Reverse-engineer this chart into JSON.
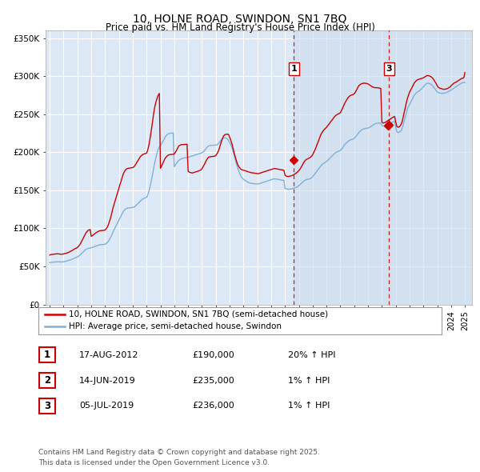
{
  "title": "10, HOLNE ROAD, SWINDON, SN1 7BQ",
  "subtitle": "Price paid vs. HM Land Registry's House Price Index (HPI)",
  "title_fontsize": 10,
  "subtitle_fontsize": 8.5,
  "background_color": "#ffffff",
  "plot_bg_color": "#dce8f5",
  "plot_bg_shade": "#ccdcee",
  "grid_color": "#ffffff",
  "red_line_color": "#cc0000",
  "blue_line_color": "#7fb0d8",
  "ylim": [
    0,
    360000
  ],
  "yticks": [
    0,
    50000,
    100000,
    150000,
    200000,
    250000,
    300000,
    350000
  ],
  "ytick_labels": [
    "£0",
    "£50K",
    "£100K",
    "£150K",
    "£200K",
    "£250K",
    "£300K",
    "£350K"
  ],
  "xlim_start": 1994.7,
  "xlim_end": 2025.5,
  "xtick_years": [
    1995,
    1996,
    1997,
    1998,
    1999,
    2000,
    2001,
    2002,
    2003,
    2004,
    2005,
    2006,
    2007,
    2008,
    2009,
    2010,
    2011,
    2012,
    2013,
    2014,
    2015,
    2016,
    2017,
    2018,
    2019,
    2020,
    2021,
    2022,
    2023,
    2024,
    2025
  ],
  "sale_dates": [
    2012.63,
    2019.45,
    2019.51
  ],
  "sale_prices": [
    190000,
    235000,
    236000
  ],
  "sale_labels": [
    "1",
    "2",
    "3"
  ],
  "vline_sale1": 2012.63,
  "vline_sale3": 2019.51,
  "legend_entries": [
    "10, HOLNE ROAD, SWINDON, SN1 7BQ (semi-detached house)",
    "HPI: Average price, semi-detached house, Swindon"
  ],
  "table_rows": [
    [
      "1",
      "17-AUG-2012",
      "£190,000",
      "20% ↑ HPI"
    ],
    [
      "2",
      "14-JUN-2019",
      "£235,000",
      "1% ↑ HPI"
    ],
    [
      "3",
      "05-JUL-2019",
      "£236,000",
      "1% ↑ HPI"
    ]
  ],
  "footer": "Contains HM Land Registry data © Crown copyright and database right 2025.\nThis data is licensed under the Open Government Licence v3.0.",
  "hpi_years": [
    1995.0,
    1995.08,
    1995.17,
    1995.25,
    1995.33,
    1995.42,
    1995.5,
    1995.58,
    1995.67,
    1995.75,
    1995.83,
    1995.92,
    1996.0,
    1996.08,
    1996.17,
    1996.25,
    1996.33,
    1996.42,
    1996.5,
    1996.58,
    1996.67,
    1996.75,
    1996.83,
    1996.92,
    1997.0,
    1997.08,
    1997.17,
    1997.25,
    1997.33,
    1997.42,
    1997.5,
    1997.58,
    1997.67,
    1997.75,
    1997.83,
    1997.92,
    1998.0,
    1998.08,
    1998.17,
    1998.25,
    1998.33,
    1998.42,
    1998.5,
    1998.58,
    1998.67,
    1998.75,
    1998.83,
    1998.92,
    1999.0,
    1999.08,
    1999.17,
    1999.25,
    1999.33,
    1999.42,
    1999.5,
    1999.58,
    1999.67,
    1999.75,
    1999.83,
    1999.92,
    2000.0,
    2000.08,
    2000.17,
    2000.25,
    2000.33,
    2000.42,
    2000.5,
    2000.58,
    2000.67,
    2000.75,
    2000.83,
    2000.92,
    2001.0,
    2001.08,
    2001.17,
    2001.25,
    2001.33,
    2001.42,
    2001.5,
    2001.58,
    2001.67,
    2001.75,
    2001.83,
    2001.92,
    2002.0,
    2002.08,
    2002.17,
    2002.25,
    2002.33,
    2002.42,
    2002.5,
    2002.58,
    2002.67,
    2002.75,
    2002.83,
    2002.92,
    2003.0,
    2003.08,
    2003.17,
    2003.25,
    2003.33,
    2003.42,
    2003.5,
    2003.58,
    2003.67,
    2003.75,
    2003.83,
    2003.92,
    2004.0,
    2004.08,
    2004.17,
    2004.25,
    2004.33,
    2004.42,
    2004.5,
    2004.58,
    2004.67,
    2004.75,
    2004.83,
    2004.92,
    2005.0,
    2005.08,
    2005.17,
    2005.25,
    2005.33,
    2005.42,
    2005.5,
    2005.58,
    2005.67,
    2005.75,
    2005.83,
    2005.92,
    2006.0,
    2006.08,
    2006.17,
    2006.25,
    2006.33,
    2006.42,
    2006.5,
    2006.58,
    2006.67,
    2006.75,
    2006.83,
    2006.92,
    2007.0,
    2007.08,
    2007.17,
    2007.25,
    2007.33,
    2007.42,
    2007.5,
    2007.58,
    2007.67,
    2007.75,
    2007.83,
    2007.92,
    2008.0,
    2008.08,
    2008.17,
    2008.25,
    2008.33,
    2008.42,
    2008.5,
    2008.58,
    2008.67,
    2008.75,
    2008.83,
    2008.92,
    2009.0,
    2009.08,
    2009.17,
    2009.25,
    2009.33,
    2009.42,
    2009.5,
    2009.58,
    2009.67,
    2009.75,
    2009.83,
    2009.92,
    2010.0,
    2010.08,
    2010.17,
    2010.25,
    2010.33,
    2010.42,
    2010.5,
    2010.58,
    2010.67,
    2010.75,
    2010.83,
    2010.92,
    2011.0,
    2011.08,
    2011.17,
    2011.25,
    2011.33,
    2011.42,
    2011.5,
    2011.58,
    2011.67,
    2011.75,
    2011.83,
    2011.92,
    2012.0,
    2012.08,
    2012.17,
    2012.25,
    2012.33,
    2012.42,
    2012.5,
    2012.58,
    2012.67,
    2012.75,
    2012.83,
    2012.92,
    2013.0,
    2013.08,
    2013.17,
    2013.25,
    2013.33,
    2013.42,
    2013.5,
    2013.58,
    2013.67,
    2013.75,
    2013.83,
    2013.92,
    2014.0,
    2014.08,
    2014.17,
    2014.25,
    2014.33,
    2014.42,
    2014.5,
    2014.58,
    2014.67,
    2014.75,
    2014.83,
    2014.92,
    2015.0,
    2015.08,
    2015.17,
    2015.25,
    2015.33,
    2015.42,
    2015.5,
    2015.58,
    2015.67,
    2015.75,
    2015.83,
    2015.92,
    2016.0,
    2016.08,
    2016.17,
    2016.25,
    2016.33,
    2016.42,
    2016.5,
    2016.58,
    2016.67,
    2016.75,
    2016.83,
    2016.92,
    2017.0,
    2017.08,
    2017.17,
    2017.25,
    2017.33,
    2017.42,
    2017.5,
    2017.58,
    2017.67,
    2017.75,
    2017.83,
    2017.92,
    2018.0,
    2018.08,
    2018.17,
    2018.25,
    2018.33,
    2018.42,
    2018.5,
    2018.58,
    2018.67,
    2018.75,
    2018.83,
    2018.92,
    2019.0,
    2019.08,
    2019.17,
    2019.25,
    2019.33,
    2019.42,
    2019.5,
    2019.58,
    2019.67,
    2019.75,
    2019.83,
    2019.92,
    2020.0,
    2020.08,
    2020.17,
    2020.25,
    2020.33,
    2020.42,
    2020.5,
    2020.58,
    2020.67,
    2020.75,
    2020.83,
    2020.92,
    2021.0,
    2021.08,
    2021.17,
    2021.25,
    2021.33,
    2021.42,
    2021.5,
    2021.58,
    2021.67,
    2021.75,
    2021.83,
    2021.92,
    2022.0,
    2022.08,
    2022.17,
    2022.25,
    2022.33,
    2022.42,
    2022.5,
    2022.58,
    2022.67,
    2022.75,
    2022.83,
    2022.92,
    2023.0,
    2023.08,
    2023.17,
    2023.25,
    2023.33,
    2023.42,
    2023.5,
    2023.58,
    2023.67,
    2023.75,
    2023.83,
    2023.92,
    2024.0,
    2024.08,
    2024.17,
    2024.25,
    2024.33,
    2024.42,
    2024.5,
    2024.58,
    2024.67,
    2024.75,
    2024.83,
    2024.92,
    2025.0
  ],
  "hpi_values": [
    55000,
    55300,
    55500,
    55600,
    55700,
    55800,
    56000,
    56100,
    56000,
    55900,
    55800,
    55900,
    56100,
    56400,
    56800,
    57200,
    57700,
    58200,
    58700,
    59300,
    59900,
    60500,
    61200,
    61800,
    62500,
    63500,
    64700,
    66000,
    67500,
    69000,
    70500,
    72000,
    73000,
    73500,
    74000,
    74200,
    74500,
    75000,
    75600,
    76200,
    76800,
    77300,
    77800,
    78200,
    78500,
    78700,
    78800,
    78900,
    79200,
    80000,
    81500,
    83500,
    86000,
    89000,
    92000,
    95500,
    99000,
    102000,
    105000,
    108000,
    111000,
    114000,
    117000,
    120000,
    122500,
    124500,
    125800,
    126500,
    126800,
    127000,
    127200,
    127400,
    127600,
    128000,
    129000,
    130500,
    132000,
    133500,
    135000,
    136500,
    138000,
    139000,
    139800,
    140200,
    141000,
    144000,
    149000,
    155000,
    162000,
    170000,
    178000,
    186000,
    193000,
    199000,
    204000,
    207000,
    209000,
    211500,
    214000,
    217000,
    220000,
    222000,
    223500,
    224500,
    225000,
    225200,
    225300,
    225400,
    181000,
    183500,
    186000,
    188000,
    189500,
    190500,
    191500,
    192000,
    192500,
    192800,
    193000,
    193200,
    193500,
    194000,
    194500,
    195000,
    195500,
    196000,
    196500,
    197000,
    197500,
    198000,
    198500,
    199000,
    199500,
    200500,
    202000,
    204000,
    206000,
    207500,
    208500,
    209000,
    209200,
    209300,
    209400,
    209500,
    209600,
    210000,
    211000,
    213000,
    215000,
    217000,
    218500,
    219000,
    219200,
    218800,
    217500,
    215500,
    213000,
    210000,
    206000,
    201000,
    195500,
    190000,
    184500,
    179500,
    175000,
    171000,
    168000,
    166000,
    164500,
    163500,
    162500,
    161500,
    160500,
    160000,
    159500,
    159200,
    159000,
    158800,
    158600,
    158500,
    158500,
    158500,
    159000,
    159500,
    160000,
    160500,
    161000,
    161500,
    162000,
    162500,
    163000,
    163500,
    164000,
    164500,
    165000,
    165200,
    165000,
    164800,
    164500,
    164200,
    163800,
    163500,
    163200,
    163000,
    152500,
    152000,
    151800,
    151500,
    151500,
    151800,
    152000,
    152500,
    153000,
    153500,
    154200,
    155000,
    156000,
    157500,
    159000,
    160500,
    162000,
    163000,
    163800,
    164300,
    164700,
    165000,
    165500,
    166500,
    168000,
    170000,
    172000,
    174000,
    176000,
    178000,
    180000,
    182000,
    183800,
    185000,
    186000,
    187000,
    188000,
    189500,
    191000,
    192500,
    194000,
    195500,
    197000,
    198500,
    199800,
    200500,
    201200,
    201800,
    202500,
    204000,
    206000,
    208500,
    210500,
    212000,
    213500,
    214800,
    215800,
    216500,
    217000,
    217500,
    218500,
    220000,
    222000,
    224000,
    226000,
    227500,
    229000,
    230000,
    230800,
    231200,
    231500,
    231800,
    232000,
    232500,
    233500,
    234500,
    235500,
    236500,
    237500,
    238000,
    238300,
    238500,
    238600,
    238500,
    235500,
    234500,
    234800,
    235200,
    235800,
    236500,
    237200,
    238000,
    238800,
    239500,
    240200,
    240800,
    233000,
    227000,
    226000,
    226500,
    227500,
    229500,
    233500,
    239000,
    245000,
    251000,
    256000,
    260000,
    263000,
    266000,
    269000,
    272000,
    275000,
    277000,
    278500,
    279500,
    280500,
    281500,
    283000,
    284500,
    286000,
    288000,
    289500,
    290500,
    291000,
    290500,
    290000,
    289000,
    287500,
    285500,
    283500,
    281500,
    279500,
    278500,
    278000,
    277800,
    277500,
    277500,
    277800,
    278200,
    278800,
    279500,
    280200,
    281000,
    282000,
    283000,
    284000,
    285000,
    286000,
    287000,
    288000,
    289000,
    290000,
    291000,
    291500,
    292000,
    292000
  ],
  "red_years": [
    1995.0,
    1995.08,
    1995.17,
    1995.25,
    1995.33,
    1995.42,
    1995.5,
    1995.58,
    1995.67,
    1995.75,
    1995.83,
    1995.92,
    1996.0,
    1996.08,
    1996.17,
    1996.25,
    1996.33,
    1996.42,
    1996.5,
    1996.58,
    1996.67,
    1996.75,
    1996.83,
    1996.92,
    1997.0,
    1997.08,
    1997.17,
    1997.25,
    1997.33,
    1997.42,
    1997.5,
    1997.58,
    1997.67,
    1997.75,
    1997.83,
    1997.92,
    1998.0,
    1998.08,
    1998.17,
    1998.25,
    1998.33,
    1998.42,
    1998.5,
    1998.58,
    1998.67,
    1998.75,
    1998.83,
    1998.92,
    1999.0,
    1999.08,
    1999.17,
    1999.25,
    1999.33,
    1999.42,
    1999.5,
    1999.58,
    1999.67,
    1999.75,
    1999.83,
    1999.92,
    2000.0,
    2000.08,
    2000.17,
    2000.25,
    2000.33,
    2000.42,
    2000.5,
    2000.58,
    2000.67,
    2000.75,
    2000.83,
    2000.92,
    2001.0,
    2001.08,
    2001.17,
    2001.25,
    2001.33,
    2001.42,
    2001.5,
    2001.58,
    2001.67,
    2001.75,
    2001.83,
    2001.92,
    2002.0,
    2002.08,
    2002.17,
    2002.25,
    2002.33,
    2002.42,
    2002.5,
    2002.58,
    2002.67,
    2002.75,
    2002.83,
    2002.92,
    2003.0,
    2003.08,
    2003.17,
    2003.25,
    2003.33,
    2003.42,
    2003.5,
    2003.58,
    2003.67,
    2003.75,
    2003.83,
    2003.92,
    2004.0,
    2004.08,
    2004.17,
    2004.25,
    2004.33,
    2004.42,
    2004.5,
    2004.58,
    2004.67,
    2004.75,
    2004.83,
    2004.92,
    2005.0,
    2005.08,
    2005.17,
    2005.25,
    2005.33,
    2005.42,
    2005.5,
    2005.58,
    2005.67,
    2005.75,
    2005.83,
    2005.92,
    2006.0,
    2006.08,
    2006.17,
    2006.25,
    2006.33,
    2006.42,
    2006.5,
    2006.58,
    2006.67,
    2006.75,
    2006.83,
    2006.92,
    2007.0,
    2007.08,
    2007.17,
    2007.25,
    2007.33,
    2007.42,
    2007.5,
    2007.58,
    2007.67,
    2007.75,
    2007.83,
    2007.92,
    2008.0,
    2008.08,
    2008.17,
    2008.25,
    2008.33,
    2008.42,
    2008.5,
    2008.58,
    2008.67,
    2008.75,
    2008.83,
    2008.92,
    2009.0,
    2009.08,
    2009.17,
    2009.25,
    2009.33,
    2009.42,
    2009.5,
    2009.58,
    2009.67,
    2009.75,
    2009.83,
    2009.92,
    2010.0,
    2010.08,
    2010.17,
    2010.25,
    2010.33,
    2010.42,
    2010.5,
    2010.58,
    2010.67,
    2010.75,
    2010.83,
    2010.92,
    2011.0,
    2011.08,
    2011.17,
    2011.25,
    2011.33,
    2011.42,
    2011.5,
    2011.58,
    2011.67,
    2011.75,
    2011.83,
    2011.92,
    2012.0,
    2012.08,
    2012.17,
    2012.25,
    2012.33,
    2012.42,
    2012.5,
    2012.58,
    2012.67,
    2012.75,
    2012.83,
    2012.92,
    2013.0,
    2013.08,
    2013.17,
    2013.25,
    2013.33,
    2013.42,
    2013.5,
    2013.58,
    2013.67,
    2013.75,
    2013.83,
    2013.92,
    2014.0,
    2014.08,
    2014.17,
    2014.25,
    2014.33,
    2014.42,
    2014.5,
    2014.58,
    2014.67,
    2014.75,
    2014.83,
    2014.92,
    2015.0,
    2015.08,
    2015.17,
    2015.25,
    2015.33,
    2015.42,
    2015.5,
    2015.58,
    2015.67,
    2015.75,
    2015.83,
    2015.92,
    2016.0,
    2016.08,
    2016.17,
    2016.25,
    2016.33,
    2016.42,
    2016.5,
    2016.58,
    2016.67,
    2016.75,
    2016.83,
    2016.92,
    2017.0,
    2017.08,
    2017.17,
    2017.25,
    2017.33,
    2017.42,
    2017.5,
    2017.58,
    2017.67,
    2017.75,
    2017.83,
    2017.92,
    2018.0,
    2018.08,
    2018.17,
    2018.25,
    2018.33,
    2018.42,
    2018.5,
    2018.58,
    2018.67,
    2018.75,
    2018.83,
    2018.92,
    2019.0,
    2019.08,
    2019.17,
    2019.25,
    2019.33,
    2019.42,
    2019.5,
    2019.58,
    2019.67,
    2019.75,
    2019.83,
    2019.92,
    2020.0,
    2020.08,
    2020.17,
    2020.25,
    2020.33,
    2020.42,
    2020.5,
    2020.58,
    2020.67,
    2020.75,
    2020.83,
    2020.92,
    2021.0,
    2021.08,
    2021.17,
    2021.25,
    2021.33,
    2021.42,
    2021.5,
    2021.58,
    2021.67,
    2021.75,
    2021.83,
    2021.92,
    2022.0,
    2022.08,
    2022.17,
    2022.25,
    2022.33,
    2022.42,
    2022.5,
    2022.58,
    2022.67,
    2022.75,
    2022.83,
    2022.92,
    2023.0,
    2023.08,
    2023.17,
    2023.25,
    2023.33,
    2023.42,
    2023.5,
    2023.58,
    2023.67,
    2023.75,
    2023.83,
    2023.92,
    2024.0,
    2024.08,
    2024.17,
    2024.25,
    2024.33,
    2024.42,
    2024.5,
    2024.58,
    2024.67,
    2024.75,
    2024.83,
    2024.92,
    2025.0
  ],
  "red_values": [
    65000,
    65500,
    65800,
    66000,
    66200,
    66400,
    66500,
    66600,
    66400,
    66200,
    66000,
    66200,
    66500,
    66800,
    67200,
    67700,
    68300,
    69000,
    69800,
    70700,
    71500,
    72500,
    73500,
    74000,
    75000,
    76500,
    78500,
    81000,
    84000,
    87000,
    90000,
    93000,
    95500,
    97000,
    98000,
    98500,
    89500,
    90500,
    91800,
    93000,
    94200,
    95200,
    96000,
    96600,
    97000,
    97200,
    97300,
    97500,
    98000,
    99500,
    102000,
    105500,
    110000,
    115500,
    121500,
    127500,
    133000,
    138000,
    143000,
    148000,
    153000,
    158000,
    163000,
    168000,
    172500,
    175500,
    177500,
    178500,
    179000,
    179200,
    179500,
    179800,
    180000,
    181000,
    183000,
    185500,
    188000,
    190500,
    193000,
    195000,
    196500,
    197500,
    198000,
    198500,
    199000,
    203000,
    210000,
    218500,
    228000,
    239000,
    250000,
    259000,
    266000,
    271000,
    275000,
    277500,
    179000,
    182000,
    185500,
    189000,
    192000,
    194000,
    195500,
    196500,
    197000,
    197200,
    197300,
    197500,
    198000,
    200000,
    203000,
    206000,
    208500,
    209500,
    210000,
    210200,
    210300,
    210400,
    210500,
    210700,
    175000,
    174000,
    173500,
    173000,
    173000,
    173500,
    174000,
    174500,
    175000,
    175500,
    176000,
    177000,
    178500,
    181000,
    184000,
    187000,
    190000,
    192500,
    193800,
    194200,
    194400,
    194500,
    194700,
    195000,
    196000,
    198000,
    201000,
    205000,
    210000,
    215000,
    219000,
    222000,
    223500,
    223800,
    224000,
    223500,
    220000,
    216000,
    211000,
    205000,
    199000,
    193000,
    188000,
    184000,
    181000,
    179000,
    177500,
    177000,
    176500,
    176000,
    175500,
    175000,
    174500,
    174000,
    173500,
    173200,
    173000,
    172800,
    172500,
    172300,
    172000,
    172000,
    172500,
    173000,
    173500,
    174000,
    174500,
    175000,
    175500,
    176000,
    176500,
    177000,
    177500,
    178000,
    178500,
    178800,
    178500,
    178200,
    177800,
    177500,
    177200,
    177000,
    176800,
    176500,
    170000,
    168800,
    168500,
    168200,
    168500,
    169000,
    169500,
    170000,
    171000,
    172000,
    173000,
    174500,
    176000,
    178000,
    180500,
    183000,
    186000,
    188500,
    190000,
    191000,
    191800,
    192500,
    193500,
    195000,
    197000,
    200000,
    203500,
    207000,
    211000,
    215000,
    219000,
    223000,
    226000,
    228000,
    230000,
    231500,
    233000,
    235000,
    237000,
    239000,
    241000,
    243000,
    245000,
    247000,
    248500,
    249500,
    250500,
    251200,
    252000,
    255000,
    258500,
    262000,
    265000,
    268000,
    270500,
    272500,
    274000,
    275000,
    275500,
    276000,
    277000,
    279000,
    282000,
    285000,
    287500,
    289000,
    290000,
    290500,
    291000,
    291000,
    290800,
    290500,
    290000,
    289000,
    288000,
    287000,
    286000,
    285500,
    285000,
    285000,
    285000,
    284800,
    284500,
    284000,
    240000,
    238500,
    239000,
    239500,
    240500,
    241500,
    242500,
    243500,
    244500,
    245500,
    246500,
    247200,
    240000,
    234000,
    233000,
    233500,
    235000,
    238000,
    243000,
    250000,
    257000,
    264000,
    270000,
    275000,
    279000,
    282000,
    285000,
    288000,
    291000,
    293000,
    294500,
    295500,
    296000,
    296500,
    297000,
    297500,
    298000,
    299000,
    300000,
    300800,
    301000,
    300500,
    300000,
    299000,
    297500,
    295500,
    293000,
    290500,
    287500,
    285500,
    284500,
    284000,
    283500,
    283000,
    283000,
    283000,
    283500,
    284000,
    285000,
    286000,
    287500,
    289000,
    290500,
    291500,
    292000,
    293000,
    294000,
    295000,
    296000,
    297000,
    297500,
    298000,
    305000
  ]
}
